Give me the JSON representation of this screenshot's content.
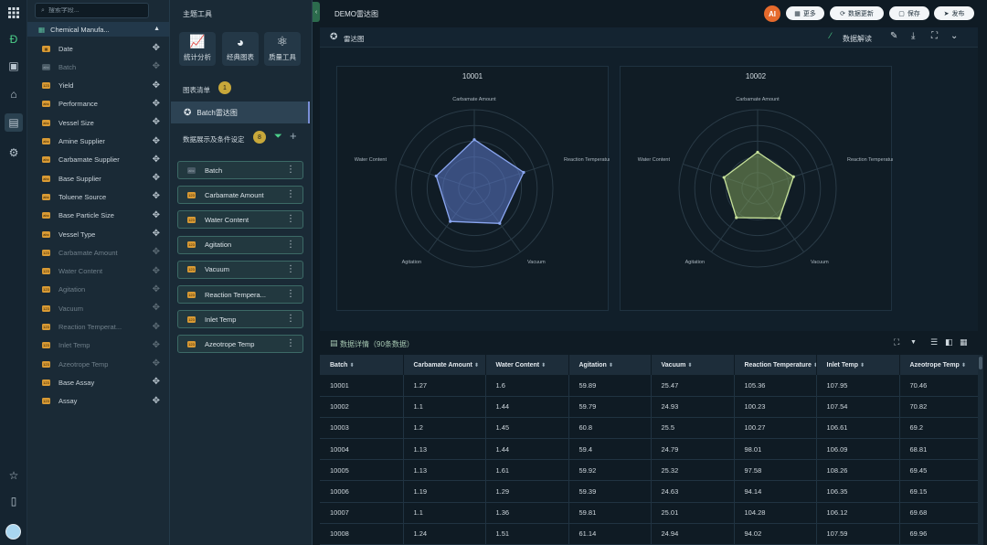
{
  "fields_panel": {
    "search_placeholder": "搜索字段...",
    "group_label": "Chemical Manufa...",
    "items": [
      {
        "label": "Date",
        "type": "date",
        "dim": false
      },
      {
        "label": "Batch",
        "type": "text",
        "dim": true
      },
      {
        "label": "Yield",
        "type": "num",
        "dim": false
      },
      {
        "label": "Performance",
        "type": "text",
        "dim": false
      },
      {
        "label": "Vessel Size",
        "type": "text",
        "dim": false
      },
      {
        "label": "Amine Supplier",
        "type": "text",
        "dim": false
      },
      {
        "label": "Carbamate Supplier",
        "type": "text",
        "dim": false
      },
      {
        "label": "Base Supplier",
        "type": "text",
        "dim": false
      },
      {
        "label": "Toluene Source",
        "type": "text",
        "dim": false
      },
      {
        "label": "Base Particle Size",
        "type": "text",
        "dim": false
      },
      {
        "label": "Vessel Type",
        "type": "text",
        "dim": false
      },
      {
        "label": "Carbamate Amount",
        "type": "num",
        "dim": true
      },
      {
        "label": "Water Content",
        "type": "num",
        "dim": true
      },
      {
        "label": "Agitation",
        "type": "num",
        "dim": true
      },
      {
        "label": "Vacuum",
        "type": "num",
        "dim": true
      },
      {
        "label": "Reaction Temperat...",
        "type": "num",
        "dim": true
      },
      {
        "label": "Inlet Temp",
        "type": "num",
        "dim": true
      },
      {
        "label": "Azeotrope Temp",
        "type": "num",
        "dim": true
      },
      {
        "label": "Base Assay",
        "type": "num",
        "dim": false
      },
      {
        "label": "Assay",
        "type": "num",
        "dim": false
      }
    ]
  },
  "config_panel": {
    "title": "主题工具",
    "tools": [
      "统计分析",
      "经典图表",
      "质量工具"
    ],
    "chart_list_label": "图表清单",
    "chart_list_count": "1",
    "chart_item": "Batch雷达图",
    "data_settings_label": "数据展示及条件设定",
    "data_settings_count": "8",
    "chips": [
      {
        "label": "Batch",
        "type": "text"
      },
      {
        "label": "Carbamate Amount",
        "type": "num"
      },
      {
        "label": "Water Content",
        "type": "num"
      },
      {
        "label": "Agitation",
        "type": "num"
      },
      {
        "label": "Vacuum",
        "type": "num"
      },
      {
        "label": "Reaction Tempera...",
        "type": "num"
      },
      {
        "label": "Inlet Temp",
        "type": "num"
      },
      {
        "label": "Azeotrope Temp",
        "type": "num"
      }
    ]
  },
  "topbar": {
    "doc_title": "DEMO雷达图",
    "ai_label": "AI",
    "more": "更多",
    "update": "数据更新",
    "save": "保存",
    "publish": "发布"
  },
  "chartbar": {
    "name": "雷达图",
    "interpret": "数据解读"
  },
  "chart_data": {
    "type": "radar",
    "axes": [
      "Carbamate Amount",
      "Reaction Temperature",
      "Vacuum",
      "Agitation",
      "Water Content"
    ],
    "panels": [
      {
        "title": "10001",
        "values": [
          0.62,
          0.66,
          0.55,
          0.52,
          0.51
        ],
        "fill": "#5b79c9",
        "stroke": "#8aa6f0"
      },
      {
        "title": "10002",
        "values": [
          0.46,
          0.48,
          0.47,
          0.46,
          0.45
        ],
        "fill": "#7c9a5a",
        "stroke": "#c7e29a"
      }
    ]
  },
  "table": {
    "title": "数据详情（90条数据）",
    "columns": [
      "Batch",
      "Carbamate Amount",
      "Water Content",
      "Agitation",
      "Vacuum",
      "Reaction Temperature",
      "Inlet Temp",
      "Azeotrope Temp"
    ],
    "rows": [
      [
        "10001",
        "1.27",
        "1.6",
        "59.89",
        "25.47",
        "105.36",
        "107.95",
        "70.46"
      ],
      [
        "10002",
        "1.1",
        "1.44",
        "59.79",
        "24.93",
        "100.23",
        "107.54",
        "70.82"
      ],
      [
        "10003",
        "1.2",
        "1.45",
        "60.8",
        "25.5",
        "100.27",
        "106.61",
        "69.2"
      ],
      [
        "10004",
        "1.13",
        "1.44",
        "59.4",
        "24.79",
        "98.01",
        "106.09",
        "68.81"
      ],
      [
        "10005",
        "1.13",
        "1.61",
        "59.92",
        "25.32",
        "97.58",
        "108.26",
        "69.45"
      ],
      [
        "10006",
        "1.19",
        "1.29",
        "59.39",
        "24.63",
        "94.14",
        "106.35",
        "69.15"
      ],
      [
        "10007",
        "1.1",
        "1.36",
        "59.81",
        "25.01",
        "104.28",
        "106.12",
        "69.68"
      ],
      [
        "10008",
        "1.24",
        "1.51",
        "61.14",
        "24.94",
        "94.02",
        "107.59",
        "69.96"
      ]
    ]
  }
}
